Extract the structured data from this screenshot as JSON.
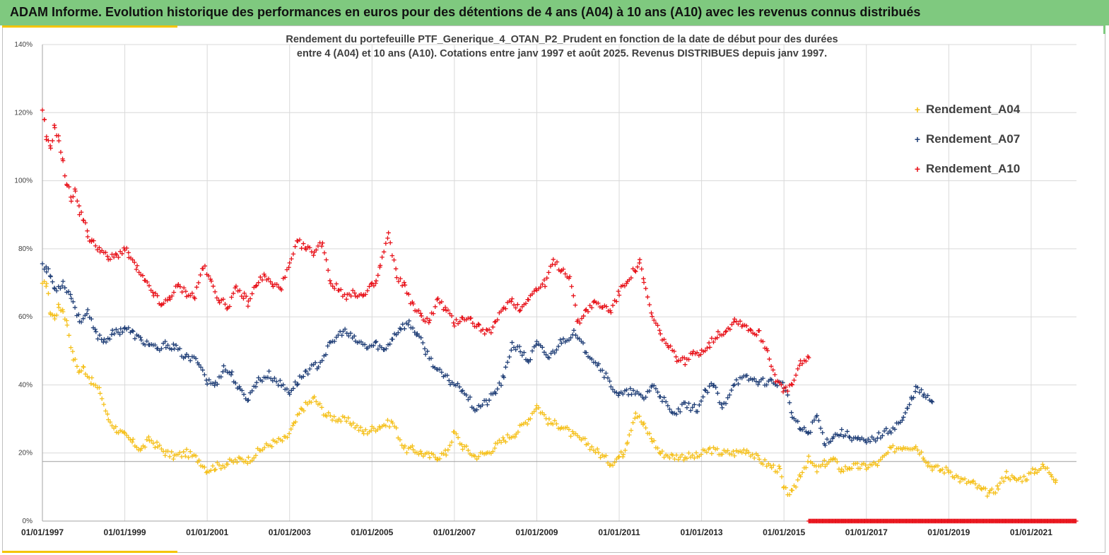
{
  "header": {
    "title": "ADAM Informe. Evolution historique des performances en euros pour des détentions de 4 ans (A04) à 10 ans (A10) avec les revenus connus distribués"
  },
  "chart_data": {
    "type": "scatter",
    "title_line1": "Rendement du portefeuille PTF_Generique_4_OTAN_P2_Prudent  en fonction de la date de début pour des durées",
    "title_line2": "entre 4 (A04) et 10 ans (A10). Cotations entre janv 1997 et août 2025. Revenus DISTRIBUES depuis janv 1997.",
    "xlabel": "",
    "ylabel": "",
    "x_ticks": [
      "01/01/1997",
      "01/01/1999",
      "01/01/2001",
      "01/01/2003",
      "01/01/2005",
      "01/01/2007",
      "01/01/2009",
      "01/01/2011",
      "01/01/2013",
      "01/01/2015",
      "01/01/2017",
      "01/01/2019",
      "01/01/2021"
    ],
    "xlim": [
      1997.0,
      2022.1
    ],
    "ylim": [
      0,
      1.4
    ],
    "y_ticks": [
      "0%",
      "20%",
      "40%",
      "60%",
      "80%",
      "100%",
      "120%",
      "140%"
    ],
    "y_tick_values": [
      0,
      0.2,
      0.4,
      0.6,
      0.8,
      1.0,
      1.2,
      1.4
    ],
    "reference_line_y": 0.175,
    "grid": true,
    "legend_position": "top-right",
    "marker": "+",
    "series": [
      {
        "name": "Rendement_A04",
        "color": "#f5c01a",
        "x": [
          1997.0,
          1997.1,
          1997.2,
          1997.3,
          1997.4,
          1997.5,
          1997.6,
          1997.75,
          1997.9,
          1998.0,
          1998.2,
          1998.4,
          1998.6,
          1998.8,
          1999.0,
          1999.2,
          1999.4,
          1999.6,
          1999.8,
          2000.0,
          2000.2,
          2000.5,
          2000.8,
          2001.0,
          2001.2,
          2001.5,
          2001.8,
          2002.0,
          2002.3,
          2002.6,
          2002.9,
          2003.1,
          2003.3,
          2003.6,
          2003.9,
          2004.2,
          2004.5,
          2004.8,
          2005.0,
          2005.2,
          2005.5,
          2005.8,
          2006.0,
          2006.2,
          2006.4,
          2006.6,
          2006.8,
          2007.0,
          2007.2,
          2007.5,
          2007.8,
          2008.0,
          2008.2,
          2008.5,
          2008.8,
          2009.0,
          2009.3,
          2009.6,
          2009.9,
          2010.2,
          2010.5,
          2010.8,
          2011.0,
          2011.1,
          2011.2,
          2011.4,
          2011.6,
          2011.8,
          2012.0,
          2012.3,
          2012.6,
          2012.9,
          2013.2,
          2013.5,
          2013.8,
          2014.1,
          2014.4,
          2014.7,
          2014.9,
          2015.0,
          2015.2,
          2015.4,
          2015.6,
          2015.8,
          2016.0,
          2016.2,
          2016.4,
          2016.6,
          2016.8,
          2017.0,
          2017.3,
          2017.6,
          2017.9,
          2018.2,
          2018.4,
          2018.5,
          2018.6,
          2018.8,
          2019.0,
          2019.3,
          2019.6,
          2019.8,
          2020.0,
          2020.2,
          2020.4,
          2020.6,
          2020.9,
          2021.1,
          2021.3,
          2021.5,
          2021.6
        ],
        "values": [
          0.69,
          0.7,
          0.61,
          0.6,
          0.63,
          0.62,
          0.58,
          0.48,
          0.44,
          0.45,
          0.41,
          0.38,
          0.3,
          0.27,
          0.25,
          0.23,
          0.21,
          0.24,
          0.22,
          0.2,
          0.19,
          0.2,
          0.18,
          0.15,
          0.16,
          0.17,
          0.18,
          0.18,
          0.21,
          0.23,
          0.24,
          0.28,
          0.33,
          0.36,
          0.31,
          0.3,
          0.29,
          0.26,
          0.27,
          0.28,
          0.29,
          0.21,
          0.21,
          0.2,
          0.19,
          0.19,
          0.2,
          0.26,
          0.22,
          0.19,
          0.2,
          0.22,
          0.24,
          0.26,
          0.3,
          0.34,
          0.29,
          0.28,
          0.25,
          0.23,
          0.2,
          0.17,
          0.19,
          0.2,
          0.24,
          0.32,
          0.28,
          0.24,
          0.2,
          0.19,
          0.19,
          0.19,
          0.21,
          0.2,
          0.2,
          0.21,
          0.18,
          0.16,
          0.15,
          0.09,
          0.08,
          0.14,
          0.18,
          0.15,
          0.17,
          0.18,
          0.15,
          0.16,
          0.16,
          0.16,
          0.17,
          0.21,
          0.22,
          0.22,
          0.19,
          0.17,
          0.16,
          0.15,
          0.15,
          0.12,
          0.11,
          0.09,
          0.08,
          0.1,
          0.14,
          0.12,
          0.13,
          0.15,
          0.16,
          0.14,
          0.12
        ]
      },
      {
        "name": "Rendement_A07",
        "color": "#203f77",
        "x": [
          1997.0,
          1997.1,
          1997.2,
          1997.3,
          1997.5,
          1997.7,
          1997.9,
          1998.1,
          1998.3,
          1998.5,
          1998.7,
          1998.9,
          1999.0,
          1999.2,
          1999.4,
          1999.6,
          1999.8,
          2000.0,
          2000.2,
          2000.5,
          2000.8,
          2001.0,
          2001.2,
          2001.4,
          2001.6,
          2001.8,
          2002.0,
          2002.2,
          2002.5,
          2002.8,
          2003.0,
          2003.2,
          2003.4,
          2003.7,
          2004.0,
          2004.3,
          2004.6,
          2004.9,
          2005.1,
          2005.3,
          2005.5,
          2005.7,
          2005.9,
          2006.1,
          2006.3,
          2006.6,
          2006.9,
          2007.2,
          2007.5,
          2007.8,
          2008.0,
          2008.2,
          2008.4,
          2008.6,
          2008.8,
          2009.0,
          2009.3,
          2009.6,
          2009.9,
          2010.2,
          2010.5,
          2010.8,
          2011.0,
          2011.3,
          2011.6,
          2011.8,
          2012.0,
          2012.3,
          2012.6,
          2012.9,
          2013.1,
          2013.3,
          2013.5,
          2013.8,
          2014.1,
          2014.4,
          2014.7,
          2015.0,
          2015.2,
          2015.4,
          2015.6,
          2015.8,
          2016.0,
          2016.2,
          2016.4,
          2016.6,
          2016.8,
          2017.0,
          2017.3,
          2017.6,
          2017.9,
          2018.0,
          2018.1,
          2018.2,
          2018.4,
          2018.6
        ],
        "values": [
          0.76,
          0.74,
          0.72,
          0.68,
          0.7,
          0.66,
          0.59,
          0.61,
          0.55,
          0.53,
          0.55,
          0.56,
          0.57,
          0.55,
          0.53,
          0.52,
          0.5,
          0.52,
          0.51,
          0.48,
          0.47,
          0.41,
          0.4,
          0.45,
          0.43,
          0.38,
          0.36,
          0.41,
          0.43,
          0.4,
          0.38,
          0.41,
          0.44,
          0.46,
          0.52,
          0.56,
          0.53,
          0.51,
          0.52,
          0.5,
          0.54,
          0.57,
          0.58,
          0.55,
          0.5,
          0.44,
          0.41,
          0.39,
          0.33,
          0.35,
          0.38,
          0.42,
          0.52,
          0.5,
          0.47,
          0.52,
          0.48,
          0.53,
          0.55,
          0.5,
          0.46,
          0.4,
          0.37,
          0.38,
          0.36,
          0.4,
          0.37,
          0.31,
          0.34,
          0.33,
          0.38,
          0.4,
          0.33,
          0.41,
          0.42,
          0.41,
          0.41,
          0.4,
          0.31,
          0.27,
          0.26,
          0.31,
          0.23,
          0.25,
          0.26,
          0.25,
          0.24,
          0.23,
          0.25,
          0.27,
          0.3,
          0.33,
          0.36,
          0.39,
          0.37,
          0.35
        ]
      },
      {
        "name": "Rendement_A10",
        "color": "#e8131b",
        "x": [
          1997.0,
          1997.05,
          1997.1,
          1997.2,
          1997.3,
          1997.4,
          1997.5,
          1997.6,
          1997.7,
          1997.8,
          1997.9,
          1998.0,
          1998.1,
          1998.2,
          1998.4,
          1998.6,
          1998.8,
          1999.0,
          1999.1,
          1999.3,
          1999.5,
          1999.7,
          1999.9,
          2000.1,
          2000.3,
          2000.5,
          2000.7,
          2000.9,
          2001.1,
          2001.3,
          2001.5,
          2001.7,
          2001.9,
          2002.0,
          2002.2,
          2002.4,
          2002.6,
          2002.8,
          2003.0,
          2003.2,
          2003.4,
          2003.6,
          2003.8,
          2004.0,
          2004.2,
          2004.4,
          2004.6,
          2004.8,
          2005.0,
          2005.1,
          2005.2,
          2005.4,
          2005.6,
          2005.8,
          2006.0,
          2006.2,
          2006.4,
          2006.6,
          2006.8,
          2007.0,
          2007.2,
          2007.4,
          2007.6,
          2007.8,
          2008.0,
          2008.2,
          2008.4,
          2008.6,
          2008.8,
          2009.0,
          2009.2,
          2009.4,
          2009.6,
          2009.8,
          2010.0,
          2010.2,
          2010.4,
          2010.6,
          2010.8,
          2011.0,
          2011.2,
          2011.4,
          2011.5,
          2011.6,
          2011.8,
          2012.0,
          2012.2,
          2012.4,
          2012.6,
          2012.8,
          2013.0,
          2013.2,
          2013.4,
          2013.6,
          2013.8,
          2014.0,
          2014.2,
          2014.4,
          2014.6,
          2014.8,
          2015.0,
          2015.2,
          2015.4,
          2015.6
        ],
        "values": [
          1.2,
          1.17,
          1.12,
          1.1,
          1.16,
          1.12,
          1.05,
          0.99,
          0.95,
          0.97,
          0.91,
          0.89,
          0.84,
          0.82,
          0.8,
          0.77,
          0.78,
          0.8,
          0.78,
          0.74,
          0.7,
          0.67,
          0.63,
          0.66,
          0.69,
          0.67,
          0.66,
          0.75,
          0.7,
          0.65,
          0.63,
          0.68,
          0.66,
          0.64,
          0.7,
          0.72,
          0.69,
          0.69,
          0.75,
          0.82,
          0.8,
          0.79,
          0.82,
          0.7,
          0.68,
          0.66,
          0.67,
          0.66,
          0.69,
          0.7,
          0.75,
          0.84,
          0.72,
          0.69,
          0.63,
          0.6,
          0.59,
          0.65,
          0.62,
          0.58,
          0.6,
          0.59,
          0.57,
          0.55,
          0.58,
          0.63,
          0.65,
          0.62,
          0.66,
          0.68,
          0.7,
          0.76,
          0.74,
          0.72,
          0.58,
          0.62,
          0.64,
          0.63,
          0.62,
          0.67,
          0.71,
          0.74,
          0.76,
          0.7,
          0.6,
          0.55,
          0.51,
          0.48,
          0.47,
          0.49,
          0.5,
          0.52,
          0.55,
          0.56,
          0.59,
          0.58,
          0.56,
          0.55,
          0.5,
          0.42,
          0.38,
          0.4,
          0.46,
          0.48
        ]
      },
      {
        "name": "",
        "color": "#e8131b",
        "x_from": 2015.6,
        "x_to": 2022.1,
        "value": 0.0
      }
    ]
  }
}
